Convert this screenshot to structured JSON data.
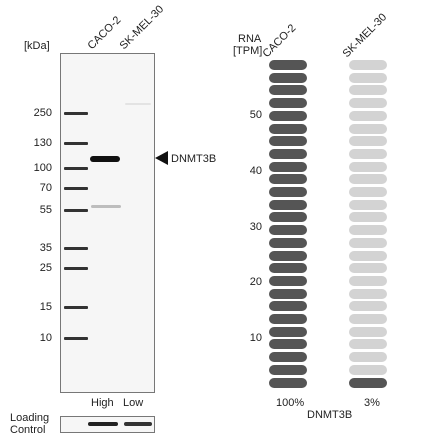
{
  "blot": {
    "kda_label": "[kDa]",
    "lanes": [
      "CACO-2",
      "SK-MEL-30"
    ],
    "markers": [
      "250",
      "130",
      "100",
      "70",
      "55",
      "35",
      "25",
      "15",
      "10"
    ],
    "target": "DNMT3B",
    "expression": [
      "High",
      "Low"
    ],
    "loading_control": [
      "Loading",
      "Control"
    ]
  },
  "rna": {
    "header": [
      "RNA",
      "[TPM]"
    ],
    "samples": [
      "CACO-2",
      "SK-MEL-30"
    ],
    "yticks": [
      "50",
      "40",
      "30",
      "20",
      "10"
    ],
    "percents": [
      "100%",
      "3%"
    ],
    "gene": "DNMT3B",
    "levels": [
      1.0,
      0.03
    ],
    "colors": {
      "high": "#555555",
      "low": "#d3d3d3"
    }
  }
}
